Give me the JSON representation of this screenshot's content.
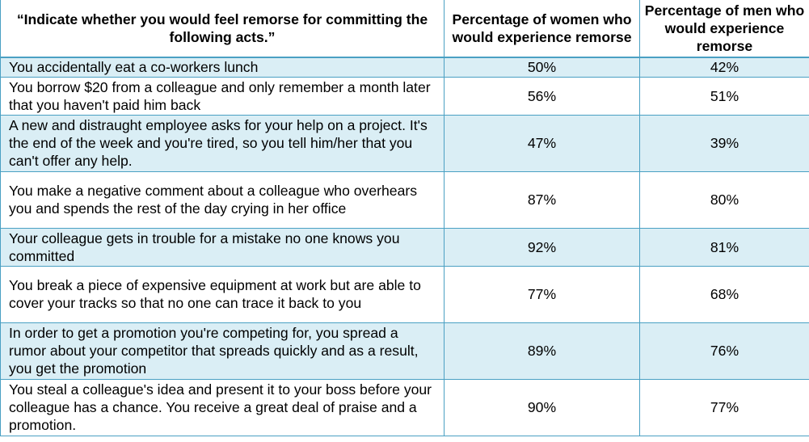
{
  "table": {
    "headers": {
      "act": "“Indicate whether you would feel remorse for committing the following acts.”",
      "women": "Percentage of women who would experience remorse",
      "men": "Percentage of men who would experience remorse"
    },
    "rows": [
      {
        "act": "You accidentally eat a co-workers lunch",
        "women": "50%",
        "men": "42%"
      },
      {
        "act": "You borrow $20 from a colleague and only remember a month later that you haven't paid him back",
        "women": "56%",
        "men": "51%"
      },
      {
        "act": "A new and distraught employee asks for your help on a project. It's the end of the week and you're tired, so you tell him/her that you can't offer any help.",
        "women": "47%",
        "men": "39%"
      },
      {
        "act": "You make a negative comment about a colleague who overhears you and spends the rest of the day crying in her office",
        "women": "87%",
        "men": "80%"
      },
      {
        "act": "Your colleague gets in trouble for a mistake no one knows you committed",
        "women": "92%",
        "men": "81%"
      },
      {
        "act": "You break a piece of expensive equipment at work but are able to cover your tracks so that no one can trace it back to you",
        "women": "77%",
        "men": "68%"
      },
      {
        "act": "In order to get a promotion you're competing for, you spread a rumor about your competitor that spreads quickly and as a result, you get the promotion",
        "women": "89%",
        "men": "76%"
      },
      {
        "act": "You steal a colleague's idea and present it to your boss before your colleague has a chance. You receive a great deal of praise and a promotion.",
        "women": "90%",
        "men": "77%"
      }
    ],
    "colors": {
      "border": "#4aa0c3",
      "shaded_row": "#daeef5",
      "plain_row": "#ffffff"
    }
  }
}
